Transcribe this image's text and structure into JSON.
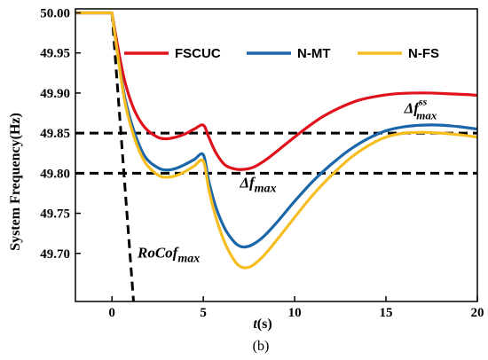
{
  "chart_data": {
    "type": "line",
    "xlabel_var": "t",
    "xlabel_unit": "(s)",
    "ylabel": "System Frequency(Hz)",
    "caption": "(b)",
    "xlim": [
      -2,
      20
    ],
    "ylim": [
      49.64,
      50.005
    ],
    "x_ticks": [
      0,
      5,
      10,
      15,
      20
    ],
    "y_ticks": [
      49.7,
      49.75,
      49.8,
      49.85,
      49.9,
      49.95,
      50.0
    ],
    "legend_position": "top",
    "series": [
      {
        "name": "FSCUC",
        "color": "#e0121c",
        "x": [
          -2,
          0,
          0.3,
          0.7,
          1.2,
          1.8,
          2.5,
          3.0,
          3.5,
          4.0,
          4.5,
          5.0,
          5.3,
          5.7,
          6.2,
          6.8,
          7.3,
          7.8,
          8.5,
          9.5,
          10.5,
          11.5,
          12.5,
          13.5,
          14.5,
          15.5,
          16.5,
          17.5,
          18.5,
          19.5,
          20
        ],
        "y": [
          50.0,
          50.0,
          49.96,
          49.915,
          49.88,
          49.857,
          49.845,
          49.843,
          49.845,
          49.849,
          49.855,
          49.86,
          49.845,
          49.825,
          49.81,
          49.805,
          49.805,
          49.808,
          49.818,
          49.836,
          49.854,
          49.87,
          49.882,
          49.891,
          49.896,
          49.899,
          49.9,
          49.9,
          49.899,
          49.898,
          49.897
        ]
      },
      {
        "name": "N-MT",
        "color": "#1a66a8",
        "x": [
          -2,
          0,
          0.3,
          0.7,
          1.2,
          1.8,
          2.5,
          3.0,
          3.5,
          4.0,
          4.5,
          5.0,
          5.3,
          5.7,
          6.2,
          6.7,
          7.0,
          7.3,
          7.7,
          8.3,
          9.0,
          10.0,
          11.0,
          12.0,
          13.0,
          14.0,
          15.0,
          16.0,
          17.0,
          18.0,
          19.0,
          20
        ],
        "y": [
          50.0,
          50.0,
          49.95,
          49.895,
          49.853,
          49.821,
          49.807,
          49.804,
          49.806,
          49.811,
          49.817,
          49.823,
          49.79,
          49.757,
          49.73,
          49.714,
          49.709,
          49.708,
          49.711,
          49.721,
          49.738,
          49.765,
          49.79,
          49.811,
          49.829,
          49.843,
          49.853,
          49.858,
          49.86,
          49.86,
          49.858,
          49.855
        ]
      },
      {
        "name": "N-FS",
        "color": "#f5bd1f",
        "x": [
          -2,
          0,
          0.3,
          0.7,
          1.2,
          1.8,
          2.5,
          3.0,
          3.5,
          4.0,
          4.5,
          5.0,
          5.3,
          5.7,
          6.2,
          6.7,
          7.0,
          7.3,
          7.7,
          8.3,
          9.0,
          10.0,
          11.0,
          12.0,
          13.0,
          14.0,
          15.0,
          16.0,
          17.0,
          18.0,
          19.0,
          20
        ],
        "y": [
          50.0,
          50.0,
          49.95,
          49.89,
          49.846,
          49.814,
          49.798,
          49.795,
          49.797,
          49.802,
          49.809,
          49.815,
          49.78,
          49.744,
          49.712,
          49.691,
          49.684,
          49.682,
          49.685,
          49.697,
          49.716,
          49.745,
          49.773,
          49.797,
          49.818,
          49.834,
          49.845,
          49.85,
          49.851,
          49.85,
          49.848,
          49.845
        ]
      }
    ],
    "reference_lines": [
      {
        "kind": "horizontal",
        "y": 49.85,
        "style": "dashed",
        "color": "#000000"
      },
      {
        "kind": "horizontal",
        "y": 49.8,
        "style": "dashed",
        "color": "#000000"
      },
      {
        "kind": "segment",
        "x": [
          0,
          1.18
        ],
        "y": [
          50.0,
          49.64
        ],
        "style": "dashed",
        "color": "#000000"
      }
    ],
    "annotations": [
      {
        "id": "df-ss",
        "base": "Δf",
        "sub": "max",
        "sup": "ss",
        "x": 16.0,
        "y": 49.875
      },
      {
        "id": "df-max",
        "base": "Δf",
        "sub": "max",
        "sup": "",
        "x": 7.0,
        "y": 49.782
      },
      {
        "id": "rocof",
        "base": "RoCof",
        "sub": "max",
        "sup": "",
        "x": 1.4,
        "y": 49.695
      }
    ]
  }
}
